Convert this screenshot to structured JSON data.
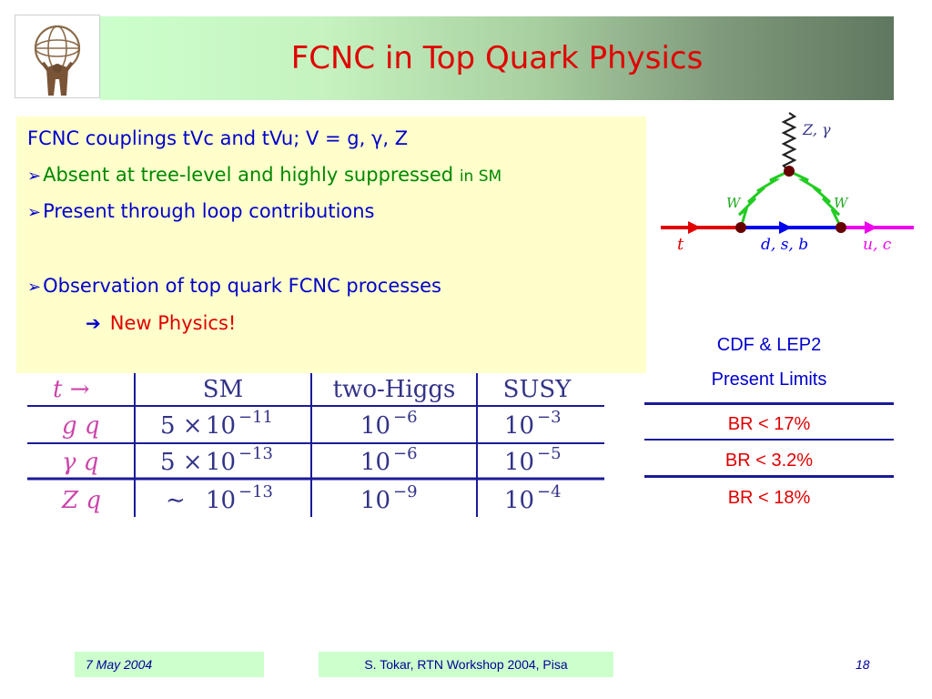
{
  "slide": {
    "title": "FCNC in Top Quark Physics"
  },
  "bullets": {
    "line1": "FCNC couplings tVc and tVu; V = g, γ, Z",
    "line2_main": "Absent at tree-level and highly suppressed ",
    "line2_small": "in SM",
    "line3": "Present through loop contributions",
    "line4": "Observation of top quark FCNC processes",
    "line5": "New Physics!"
  },
  "diagram": {
    "boson_top": "Z, γ",
    "w_left": "W",
    "w_right": "W",
    "incoming": "t",
    "internal": "d, s, b",
    "outgoing": "u, c"
  },
  "math_table": {
    "headers": [
      "t →",
      "SM",
      "two-Higgs",
      "SUSY"
    ],
    "rows": [
      {
        "process": "g q",
        "sm_mant": "5 ×",
        "sm_base": "10",
        "sm_exp": "−11",
        "higgs_base": "10",
        "higgs_exp": "−6",
        "susy_base": "10",
        "susy_exp": "−3"
      },
      {
        "process": "γ q",
        "sm_mant": "5 ×",
        "sm_base": "10",
        "sm_exp": "−13",
        "higgs_base": "10",
        "higgs_exp": "−6",
        "susy_base": "10",
        "susy_exp": "−5"
      },
      {
        "process": "Z q",
        "sm_mant": "∼",
        "sm_base": "10",
        "sm_exp": "−13",
        "higgs_base": "10",
        "higgs_exp": "−9",
        "susy_base": "10",
        "susy_exp": "−4"
      }
    ]
  },
  "limits": {
    "header1": "CDF & LEP2",
    "header2": "Present Limits",
    "values": [
      "BR < 17%",
      "BR < 3.2%",
      "BR < 18%"
    ]
  },
  "footer": {
    "date": "7 May 2004",
    "author": "S. Tokar, RTN Workshop 2004, Pisa",
    "page": "18"
  },
  "colors": {
    "title_red": "#e00000",
    "bullet_blue": "#0000cc",
    "bullet_green": "#008800",
    "box_yellow": "#ffffcc",
    "footer_green": "#ccffcc"
  }
}
